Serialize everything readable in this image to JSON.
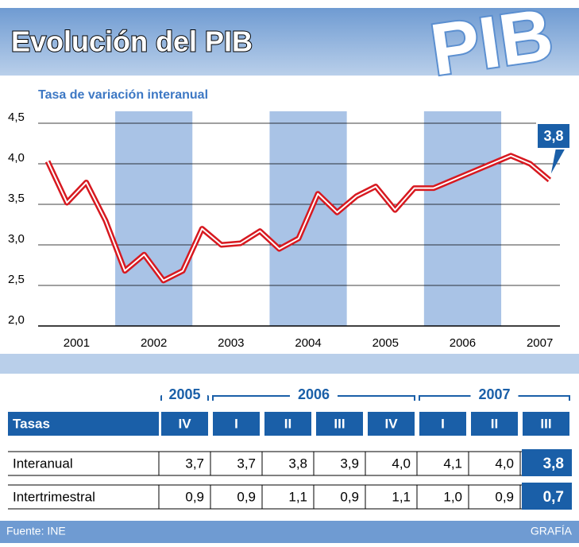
{
  "title": "Evolución del PIB",
  "logo": "PIB",
  "chart_data": {
    "type": "line",
    "subtitle": "Tasa de variación interanual",
    "categories": [
      null,
      "2001",
      null,
      null,
      null,
      "2002",
      null,
      null,
      null,
      "2003",
      null,
      null,
      null,
      "2004",
      null,
      null,
      null,
      "2005",
      null,
      null,
      null,
      "2006",
      null,
      null,
      null,
      "2007",
      null
    ],
    "series": [
      {
        "color": "#d71920",
        "values": [
          4.03,
          3.52,
          3.77,
          3.3,
          2.68,
          2.88,
          2.56,
          2.68,
          3.2,
          3.0,
          3.02,
          3.17,
          2.95,
          3.08,
          3.63,
          3.4,
          3.6,
          3.72,
          3.43,
          3.7,
          3.7,
          3.8,
          3.9,
          4.0,
          4.1,
          4.0,
          3.8
        ]
      }
    ],
    "ylim": [
      2.0,
      4.5
    ],
    "yticks": [
      {
        "value": 2.0,
        "label": "2,0"
      },
      {
        "value": 2.5,
        "label": "2,5"
      },
      {
        "value": 3.0,
        "label": "3,0"
      },
      {
        "value": 3.5,
        "label": "3,5"
      },
      {
        "value": 4.0,
        "label": "4,0"
      },
      {
        "value": 4.5,
        "label": "4,5"
      }
    ],
    "grid": true,
    "annotation": "3,8"
  },
  "table": {
    "years": [
      "2005",
      "2006",
      "2007"
    ],
    "header": [
      "Tasas",
      "IV",
      "I",
      "II",
      "III",
      "IV",
      "I",
      "II",
      "III"
    ],
    "rows": [
      [
        "Interanual",
        "3,7",
        "3,7",
        "3,8",
        "3,9",
        "4,0",
        "4,1",
        "4,0",
        "3,8"
      ],
      [
        "Intertrimestral",
        "0,9",
        "0,9",
        "1,1",
        "0,9",
        "1,1",
        "1,0",
        "0,9",
        "0,7"
      ]
    ]
  },
  "footer": {
    "source": "Fuente: INE",
    "credit": "GRAFÍA"
  }
}
